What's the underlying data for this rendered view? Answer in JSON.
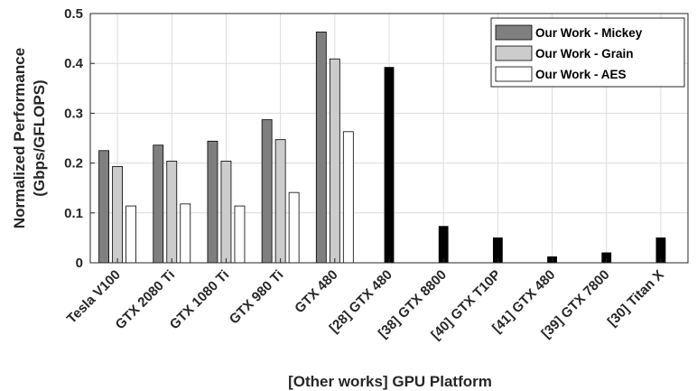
{
  "chart_data": {
    "type": "bar",
    "categories": [
      "Tesla V100",
      "GTX 2080 Ti",
      "GTX 1080 Ti",
      "GTX 980 Ti",
      "GTX 480",
      "[28] GTX 480",
      "[38] GTX 8800",
      "[40] GTX T10P",
      "[41] GTX 480",
      "[39] GTX 7800",
      "[30] Titan X"
    ],
    "series": [
      {
        "name": "Our Work - Mickey",
        "color": "#7f7f7f",
        "values": [
          0.225,
          0.236,
          0.244,
          0.287,
          0.463,
          null,
          null,
          null,
          null,
          null,
          null
        ]
      },
      {
        "name": "Our Work - Grain",
        "color": "#cccccc",
        "values": [
          0.193,
          0.204,
          0.204,
          0.247,
          0.409,
          null,
          null,
          null,
          null,
          null,
          null
        ]
      },
      {
        "name": "Our Work - AES",
        "color": "#ffffff",
        "values": [
          0.114,
          0.118,
          0.114,
          0.141,
          0.263,
          null,
          null,
          null,
          null,
          null,
          null
        ]
      },
      {
        "color": "#000000",
        "values": [
          null,
          null,
          null,
          null,
          null,
          0.392,
          0.073,
          0.05,
          0.012,
          0.02,
          0.05
        ]
      }
    ],
    "ylabel": [
      "Normalized Performance",
      "(Gbps/GFLOPS)"
    ],
    "xlabel": "[Other works] GPU Platform",
    "ylim": [
      0,
      0.5
    ],
    "yticks": [
      "0",
      "0.1",
      "0.2",
      "0.3",
      "0.4",
      "0.5"
    ],
    "grid": true,
    "legend_position": "top-right"
  }
}
